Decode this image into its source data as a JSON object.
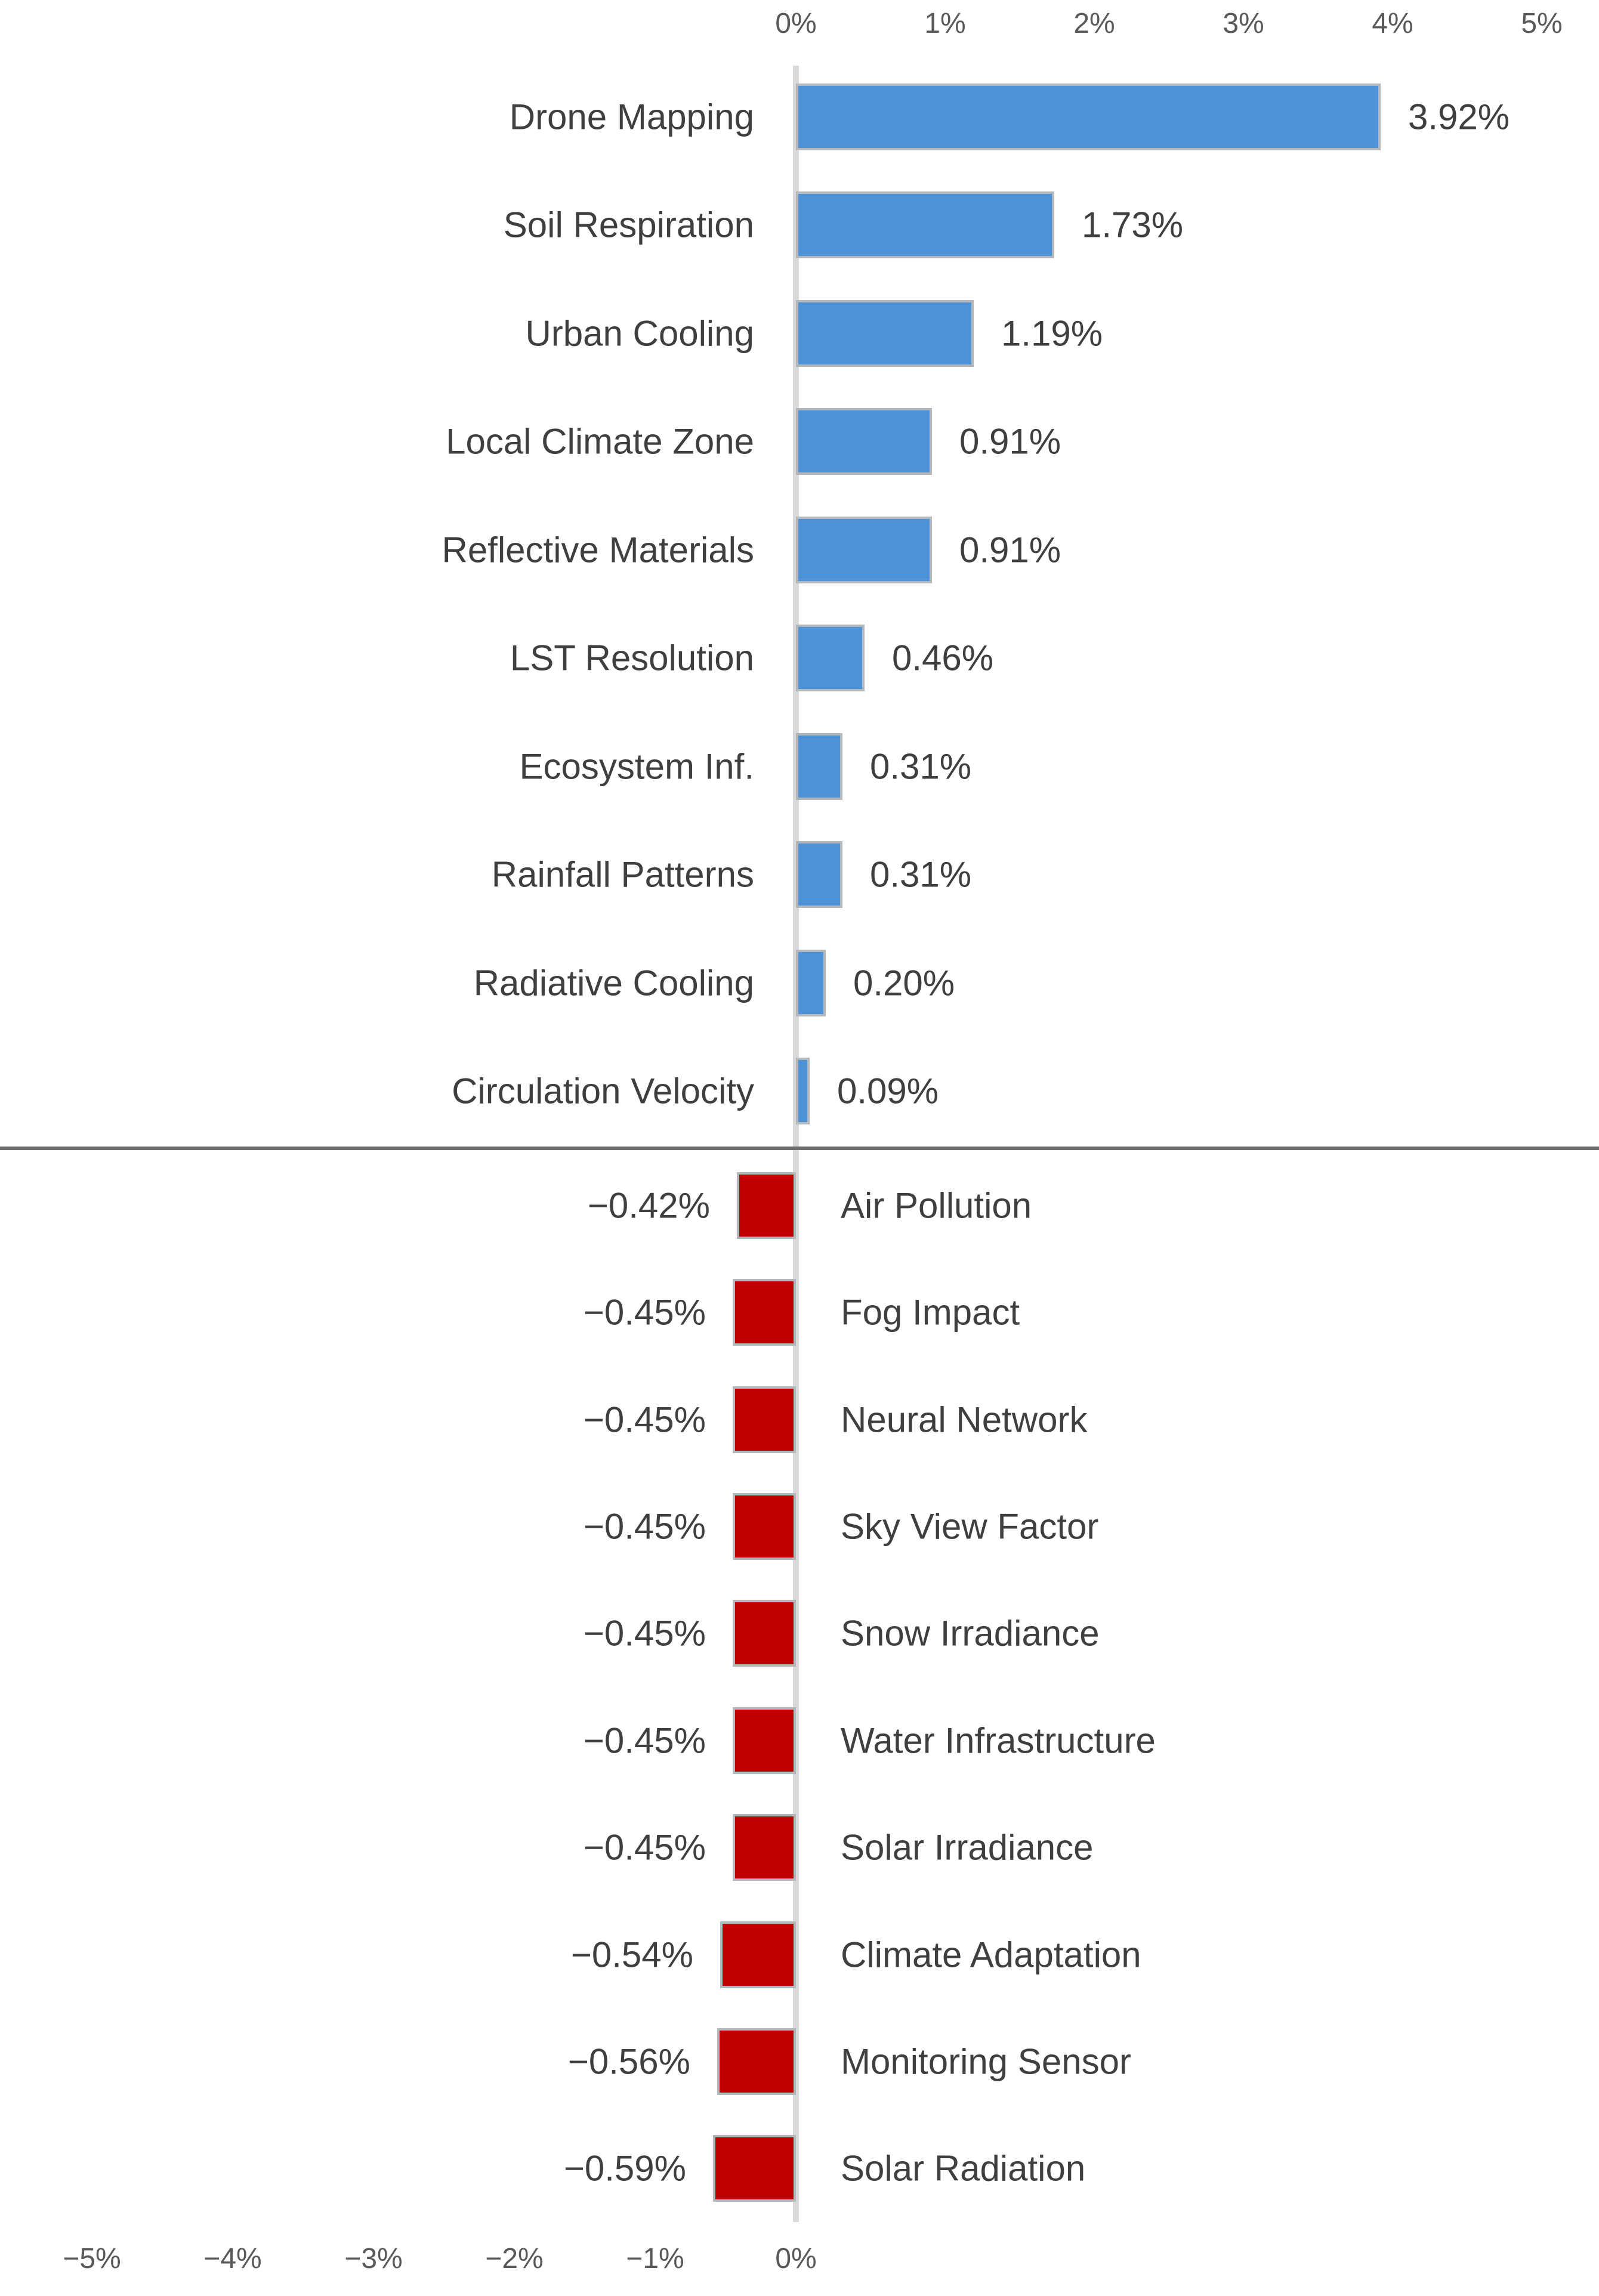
{
  "chart_data": {
    "type": "bar",
    "orientation": "horizontal",
    "variant": "diverging-tornado",
    "title": "",
    "xlabel": "",
    "ylabel": "",
    "grid": false,
    "legend": false,
    "xlim_top": [
      0,
      5
    ],
    "xlim_bottom": [
      -5,
      0
    ],
    "top_axis_ticks": [
      "0%",
      "1%",
      "2%",
      "3%",
      "4%",
      "5%"
    ],
    "bottom_axis_ticks": [
      "−5%",
      "−4%",
      "−3%",
      "−2%",
      "−1%",
      "0%"
    ],
    "positive_series": {
      "name": "Positive contributions",
      "color": "#4e92d8",
      "items": [
        {
          "label": "Drone Mapping",
          "value": 3.92,
          "display": "3.92%"
        },
        {
          "label": "Soil Respiration",
          "value": 1.73,
          "display": "1.73%"
        },
        {
          "label": "Urban Cooling",
          "value": 1.19,
          "display": "1.19%"
        },
        {
          "label": "Local Climate Zone",
          "value": 0.91,
          "display": "0.91%"
        },
        {
          "label": "Reflective Materials",
          "value": 0.91,
          "display": "0.91%"
        },
        {
          "label": "LST Resolution",
          "value": 0.46,
          "display": "0.46%"
        },
        {
          "label": "Ecosystem Inf.",
          "value": 0.31,
          "display": "0.31%"
        },
        {
          "label": "Rainfall Patterns",
          "value": 0.31,
          "display": "0.31%"
        },
        {
          "label": "Radiative Cooling",
          "value": 0.2,
          "display": "0.20%"
        },
        {
          "label": "Circulation Velocity",
          "value": 0.09,
          "display": "0.09%"
        }
      ]
    },
    "negative_series": {
      "name": "Negative contributions",
      "color": "#c00000",
      "items": [
        {
          "label": "Air Pollution",
          "value": -0.42,
          "display": "−0.42%"
        },
        {
          "label": "Fog Impact",
          "value": -0.45,
          "display": "−0.45%"
        },
        {
          "label": "Neural Network",
          "value": -0.45,
          "display": "−0.45%"
        },
        {
          "label": "Sky View Factor",
          "value": -0.45,
          "display": "−0.45%"
        },
        {
          "label": "Snow Irradiance",
          "value": -0.45,
          "display": "−0.45%"
        },
        {
          "label": "Water Infrastructure",
          "value": -0.45,
          "display": "−0.45%"
        },
        {
          "label": "Solar Irradiance",
          "value": -0.45,
          "display": "−0.45%"
        },
        {
          "label": "Climate Adaptation",
          "value": -0.54,
          "display": "−0.54%"
        },
        {
          "label": "Monitoring Sensor",
          "value": -0.56,
          "display": "−0.56%"
        },
        {
          "label": "Solar Radiation",
          "value": -0.59,
          "display": "−0.59%"
        }
      ]
    }
  },
  "colors": {
    "positive_bar": "#4e92d8",
    "negative_bar": "#c00000",
    "bar_border": "#b3b8bc",
    "axis_line": "#d9d9d9",
    "separator_line": "#6e6e6e",
    "label_text": "#3f3f3f",
    "tick_text": "#595959",
    "background": "#ffffff"
  }
}
